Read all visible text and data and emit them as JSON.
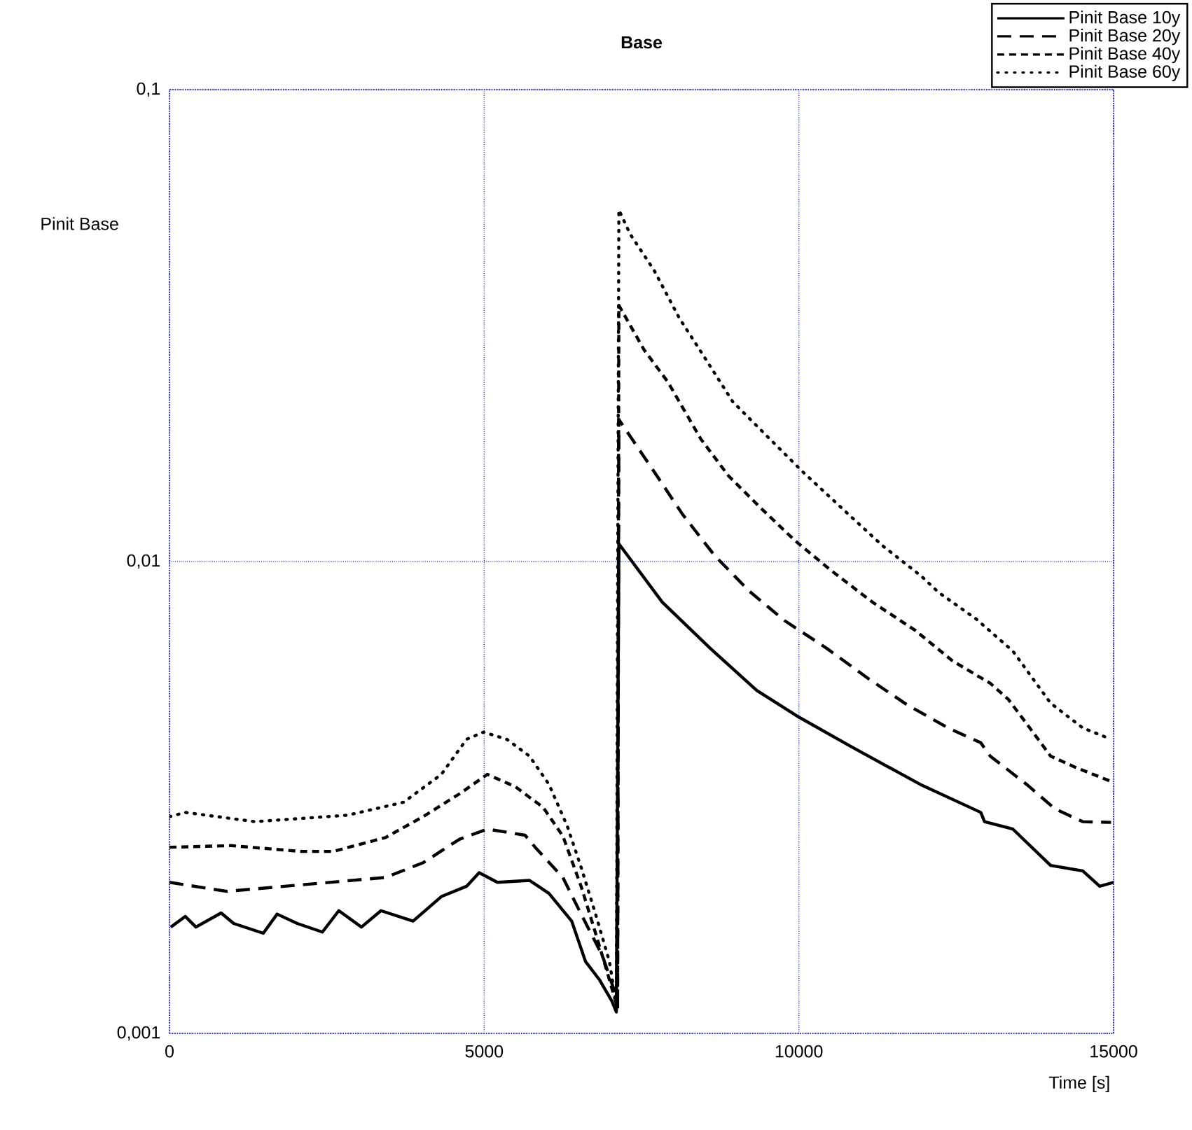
{
  "chart_data": {
    "type": "line",
    "title": "Base",
    "xlabel": "Time [s]",
    "ylabel": "Pinit Base",
    "log": "y",
    "grid": true,
    "legend": "top right",
    "xlim": [
      0,
      15000
    ],
    "ylim": [
      0.001,
      0.1
    ],
    "xticks": [
      0,
      5000,
      10000,
      15000
    ],
    "yticks": [
      {
        "value": 0.001,
        "label": "0,001"
      },
      {
        "value": 0.01,
        "label": "0,01"
      },
      {
        "value": 0.1,
        "label": "0,1"
      }
    ],
    "series": [
      {
        "name": "Pinit Base 10y",
        "color": "#000000",
        "line_style": "solid",
        "x": [
          20,
          250,
          420,
          820,
          1020,
          1490,
          1710,
          2030,
          2430,
          2690,
          3050,
          3360,
          3870,
          4320,
          4720,
          4920,
          5210,
          5720,
          6030,
          6390,
          6610,
          6830,
          7030,
          7100,
          7140,
          7830,
          8590,
          9330,
          10000,
          10820,
          11930,
          12890,
          12950,
          13400,
          14000,
          14510,
          14780,
          15000
        ],
        "values": [
          0.00168,
          0.00177,
          0.00168,
          0.0018,
          0.00171,
          0.00163,
          0.00179,
          0.00171,
          0.00164,
          0.00182,
          0.00168,
          0.00182,
          0.00173,
          0.00195,
          0.00205,
          0.00219,
          0.00209,
          0.00211,
          0.00198,
          0.00173,
          0.00142,
          0.0013,
          0.00117,
          0.00111,
          0.0109,
          0.0082,
          0.00655,
          0.00533,
          0.00468,
          0.00406,
          0.00337,
          0.00294,
          0.00281,
          0.00271,
          0.00227,
          0.00221,
          0.00205,
          0.00209
        ]
      },
      {
        "name": "Pinit Base 20y",
        "color": "#000000",
        "line_style": "dashed",
        "x": [
          0,
          910,
          3430,
          4030,
          4610,
          5050,
          5650,
          5810,
          6250,
          6540,
          6880,
          7060,
          7120,
          7140,
          7700,
          8150,
          8660,
          9210,
          9770,
          10440,
          11110,
          11710,
          12370,
          12890,
          13040,
          13620,
          14070,
          14510,
          14960
        ],
        "values": [
          0.00209,
          0.002,
          0.00214,
          0.0023,
          0.00258,
          0.00271,
          0.00263,
          0.00248,
          0.00214,
          0.00179,
          0.00146,
          0.00124,
          0.00115,
          0.02,
          0.0155,
          0.0126,
          0.0103,
          0.00866,
          0.0075,
          0.00655,
          0.00564,
          0.00498,
          0.00444,
          0.00413,
          0.00387,
          0.00337,
          0.00299,
          0.00281,
          0.0028
        ]
      },
      {
        "name": "Pinit Base 40y",
        "color": "#000000",
        "line_style": "dashed",
        "x": [
          0,
          980,
          2090,
          2600,
          3430,
          4030,
          4610,
          5050,
          5500,
          5940,
          6250,
          6540,
          6770,
          6940,
          7120,
          7140,
          7540,
          7920,
          8440,
          8880,
          9390,
          9930,
          10500,
          11170,
          11840,
          12440,
          13040,
          13330,
          13620,
          14000,
          14380,
          14960
        ],
        "values": [
          0.00248,
          0.0025,
          0.00243,
          0.00243,
          0.0026,
          0.00288,
          0.00322,
          0.00354,
          0.00333,
          0.00301,
          0.00262,
          0.00205,
          0.00163,
          0.00137,
          0.00113,
          0.0349,
          0.0281,
          0.024,
          0.0182,
          0.0152,
          0.013,
          0.0111,
          0.0096,
          0.0082,
          0.00716,
          0.00616,
          0.00552,
          0.0051,
          0.00453,
          0.00387,
          0.00367,
          0.00342
        ]
      },
      {
        "name": "Pinit Base 60y",
        "color": "#000000",
        "line_style": "dotted",
        "x": [
          0,
          250,
          1360,
          2830,
          3720,
          4320,
          4720,
          4990,
          5360,
          5720,
          6030,
          6320,
          6540,
          6770,
          6990,
          7100,
          7140,
          7320,
          7700,
          8100,
          8500,
          8950,
          9500,
          10060,
          10730,
          11330,
          11950,
          12220,
          12820,
          13400,
          14000,
          14510,
          14960
        ],
        "values": [
          0.00288,
          0.00294,
          0.00281,
          0.0029,
          0.00309,
          0.00354,
          0.0042,
          0.00435,
          0.0042,
          0.00387,
          0.00337,
          0.00275,
          0.00225,
          0.00179,
          0.00142,
          0.00115,
          0.0556,
          0.0494,
          0.0414,
          0.0328,
          0.0271,
          0.0218,
          0.0184,
          0.0155,
          0.0128,
          0.0108,
          0.0093,
          0.0086,
          0.00755,
          0.00646,
          0.00501,
          0.00444,
          0.0042
        ]
      }
    ]
  }
}
